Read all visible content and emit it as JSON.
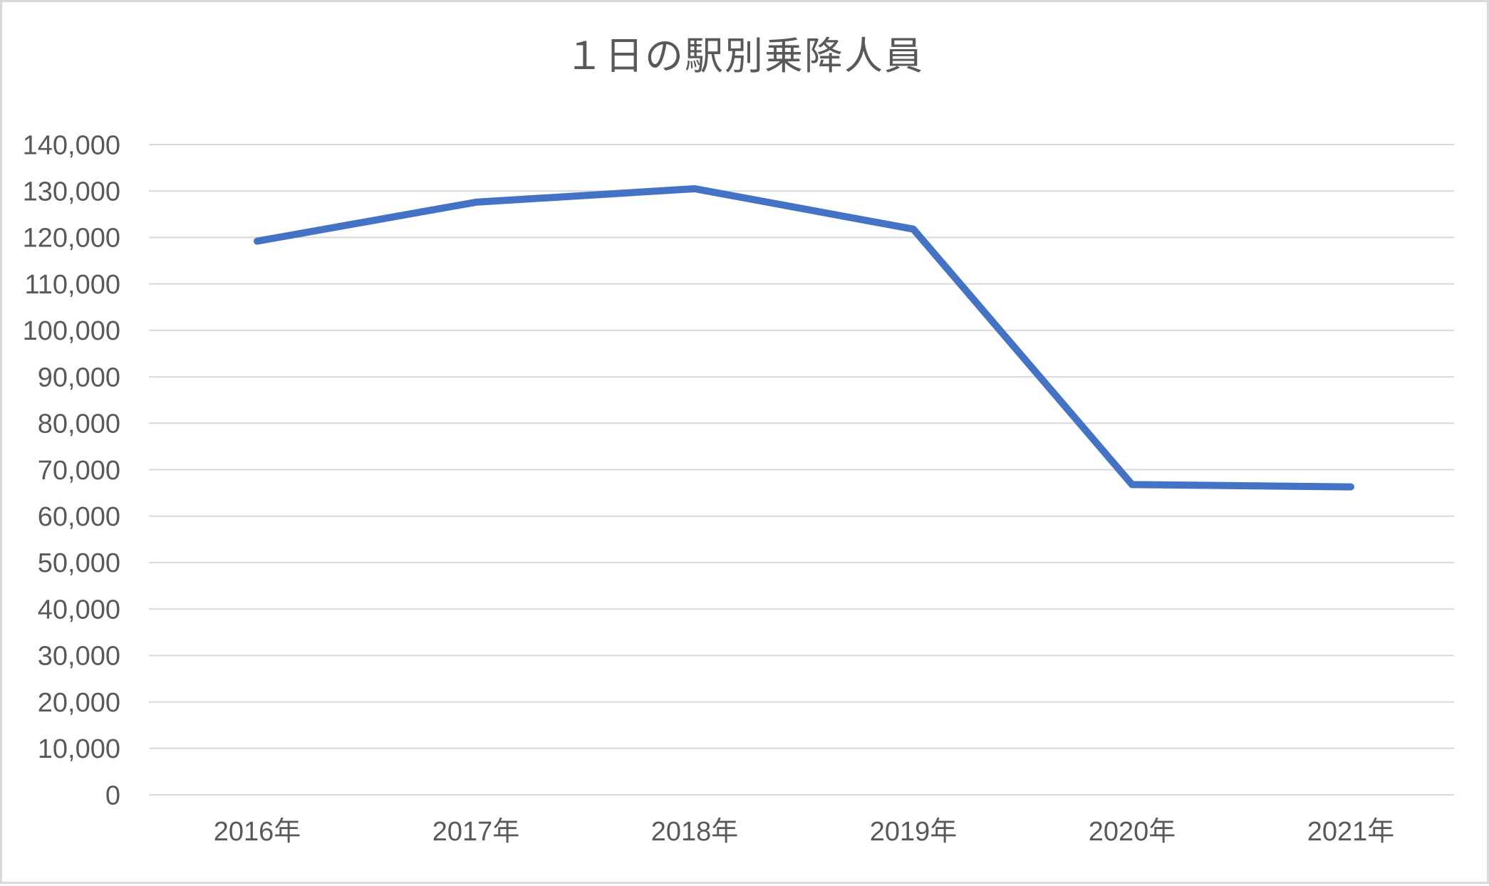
{
  "chart": {
    "colors": {
      "line": "#4472C4",
      "grid": "#D9D9D9",
      "text": "#595959",
      "background": "#FFFFFF",
      "border": "#D9D9D9"
    }
  },
  "chart_data": {
    "type": "line",
    "title": "１日の駅別乗降人員",
    "categories": [
      "2016年",
      "2017年",
      "2018年",
      "2019年",
      "2020年",
      "2021年"
    ],
    "series": [
      {
        "name": "駅別乗降人員",
        "values": [
          119200,
          127600,
          130500,
          121800,
          66800,
          66300
        ]
      }
    ],
    "xlabel": "",
    "ylabel": "",
    "ylim": [
      0,
      140000
    ],
    "y_tick_step": 10000,
    "y_tick_labels": [
      "0",
      "10,000",
      "20,000",
      "30,000",
      "40,000",
      "50,000",
      "60,000",
      "70,000",
      "80,000",
      "90,000",
      "100,000",
      "110,000",
      "120,000",
      "130,000",
      "140,000"
    ],
    "grid": true,
    "legend": false,
    "markers": false
  }
}
